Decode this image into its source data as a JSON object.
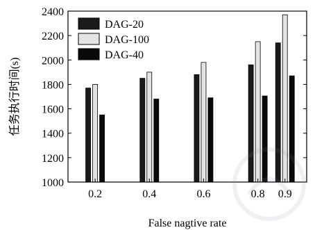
{
  "chart_data": {
    "type": "bar",
    "categories": [
      "0.2",
      "0.4",
      "0.6",
      "0.8",
      "0.9"
    ],
    "series": [
      {
        "name": "DAG-20",
        "values": [
          1770,
          1850,
          1880,
          1960,
          2140
        ],
        "color": "#1a1a1a"
      },
      {
        "name": "DAG-100",
        "values": [
          1800,
          1900,
          1980,
          2150,
          2370
        ],
        "color": "#e3e3e3"
      },
      {
        "name": "DAG-40",
        "values": [
          1550,
          1680,
          1690,
          1705,
          1870
        ],
        "color": "#0a0a0a"
      }
    ],
    "xlabel": "False nagtive rate",
    "ylabel": "任务执行时间(s)",
    "ylim": [
      1000,
      2400
    ],
    "yticks": [
      1000,
      1200,
      1400,
      1600,
      1800,
      2000,
      2200,
      2400
    ],
    "x_positions": [
      0.2,
      0.4,
      0.6,
      0.8,
      0.9
    ],
    "xlim": [
      0.1,
      0.98
    ],
    "grid": false,
    "legend_position": "top-left"
  }
}
